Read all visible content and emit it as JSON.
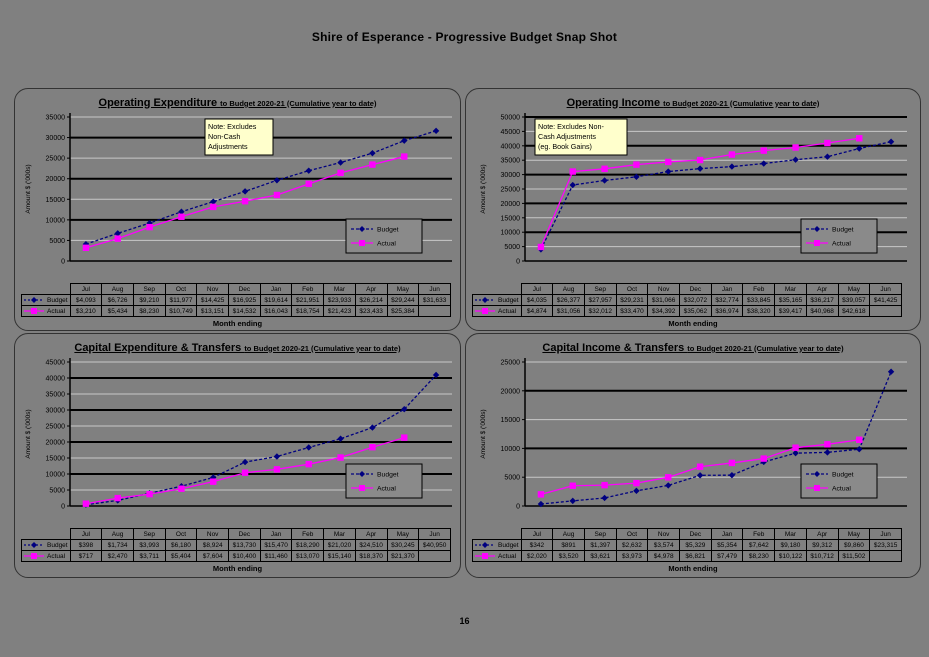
{
  "page": {
    "title": "Shire of Esperance - Progressive Budget Snap Shot",
    "page_number": "16",
    "background_color": "#808080"
  },
  "colors": {
    "budget_series": "#000080",
    "actual_series": "#FF00FF",
    "note_background": "#FFFFCC",
    "grid_major": "#000000",
    "grid_minor": "#C8C8C8",
    "axis": "#000000"
  },
  "chart_data": [
    {
      "type": "line",
      "title": "Operating Expenditure",
      "subtitle": "to Budget 2020-21 (Cumulative year to date)",
      "note_lines": [
        "Note: Excludes",
        "Non-Cash",
        "Adjustments"
      ],
      "ylabel": "Amount $ ('000s)",
      "xlabel": "Month ending",
      "ylim": [
        0,
        35000
      ],
      "ytick_step": 5000,
      "grid": true,
      "legend_position": "bottom-right",
      "categories": [
        "Jul",
        "Aug",
        "Sep",
        "Oct",
        "Nov",
        "Dec",
        "Jan",
        "Feb",
        "Mar",
        "Apr",
        "May",
        "Jun"
      ],
      "series": [
        {
          "name": "Budget",
          "color": "#000080",
          "marker": "diamond",
          "dashed": true,
          "values": [
            4093,
            6726,
            9210,
            11977,
            14425,
            16925,
            19614,
            21951,
            23933,
            26214,
            29244,
            31633
          ]
        },
        {
          "name": "Actual",
          "color": "#FF00FF",
          "marker": "square",
          "dashed": false,
          "values": [
            3210,
            5434,
            8230,
            10749,
            13151,
            14532,
            16043,
            18754,
            21423,
            23433,
            25384,
            null
          ]
        }
      ]
    },
    {
      "type": "line",
      "title": "Operating Income",
      "subtitle": "to Budget 2020-21  (Cumulative year to date)",
      "note_lines": [
        "Note: Excludes Non-",
        "Cash Adjustments",
        "(eg. Book Gains)"
      ],
      "ylabel": "Amount $ ('000s)",
      "xlabel": "Month ending",
      "ylim": [
        0,
        50000
      ],
      "ytick_step": 5000,
      "grid": true,
      "legend_position": "bottom-right",
      "categories": [
        "Jul",
        "Aug",
        "Sep",
        "Oct",
        "Nov",
        "Dec",
        "Jan",
        "Feb",
        "Mar",
        "Apr",
        "May",
        "Jun"
      ],
      "series": [
        {
          "name": "Budget",
          "color": "#000080",
          "marker": "diamond",
          "dashed": true,
          "values": [
            4035,
            26377,
            27957,
            29231,
            31066,
            32072,
            32774,
            33845,
            35165,
            36217,
            39057,
            41425
          ]
        },
        {
          "name": "Actual",
          "color": "#FF00FF",
          "marker": "square",
          "dashed": false,
          "values": [
            4874,
            31056,
            32012,
            33470,
            34392,
            35062,
            36974,
            38320,
            39417,
            40968,
            42618,
            null
          ]
        }
      ]
    },
    {
      "type": "line",
      "title": "Capital Expenditure & Transfers",
      "subtitle": "to Budget 2020-21  (Cumulative year to date)",
      "note_lines": null,
      "ylabel": "Amount $ ('000s)",
      "xlabel": "Month ending",
      "ylim": [
        0,
        45000
      ],
      "ytick_step": 5000,
      "grid": true,
      "legend_position": "bottom-right",
      "categories": [
        "Jul",
        "Aug",
        "Sep",
        "Oct",
        "Nov",
        "Dec",
        "Jan",
        "Feb",
        "Mar",
        "Apr",
        "May",
        "Jun"
      ],
      "series": [
        {
          "name": "Budget",
          "color": "#000080",
          "marker": "diamond",
          "dashed": true,
          "values": [
            398,
            1734,
            3993,
            6180,
            8924,
            13730,
            15470,
            18290,
            21020,
            24510,
            30245,
            40950
          ]
        },
        {
          "name": "Actual",
          "color": "#FF00FF",
          "marker": "square",
          "dashed": false,
          "values": [
            717,
            2470,
            3711,
            5404,
            7604,
            10400,
            11460,
            13070,
            15140,
            18370,
            21370,
            null
          ]
        }
      ]
    },
    {
      "type": "line",
      "title": "Capital Income & Transfers",
      "subtitle": "to Budget 2020-21 (Cumulative year to date)",
      "note_lines": null,
      "ylabel": "Amount $ ('000s)",
      "xlabel": "Month ending",
      "ylim": [
        0,
        25000
      ],
      "ytick_step": 5000,
      "grid": true,
      "legend_position": "bottom-right",
      "categories": [
        "Jul",
        "Aug",
        "Sep",
        "Oct",
        "Nov",
        "Dec",
        "Jan",
        "Feb",
        "Mar",
        "Apr",
        "May",
        "Jun"
      ],
      "series": [
        {
          "name": "Budget",
          "color": "#000080",
          "marker": "diamond",
          "dashed": true,
          "values": [
            342,
            891,
            1397,
            2632,
            3574,
            5329,
            5354,
            7642,
            9180,
            9312,
            9860,
            23315
          ]
        },
        {
          "name": "Actual",
          "color": "#FF00FF",
          "marker": "square",
          "dashed": false,
          "values": [
            2020,
            3520,
            3621,
            3973,
            4978,
            6821,
            7479,
            8230,
            10122,
            10712,
            11502,
            null
          ]
        }
      ]
    }
  ]
}
